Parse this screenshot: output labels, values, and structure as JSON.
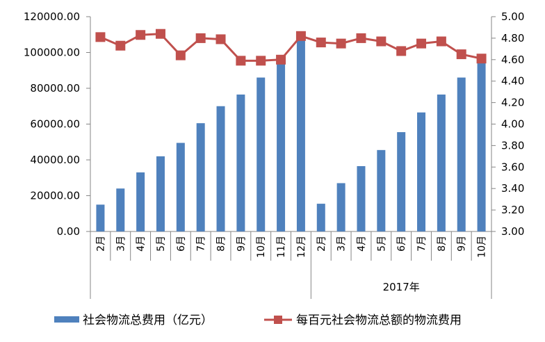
{
  "chart_data": {
    "type": "bar+line",
    "categories": [
      "2月",
      "3月",
      "4月",
      "5月",
      "6月",
      "7月",
      "8月",
      "9月",
      "10月",
      "11月",
      "12月",
      "2月",
      "3月",
      "4月",
      "5月",
      "6月",
      "7月",
      "8月",
      "9月",
      "10月"
    ],
    "group_labels": [
      {
        "label": "",
        "from": 0,
        "to": 10
      },
      {
        "label": "2017年",
        "from": 11,
        "to": 19
      }
    ],
    "series": [
      {
        "name": "社会物流总费用（亿元）",
        "type": "bar",
        "axis": "left",
        "color": "#4F81BD",
        "values": [
          15000,
          24000,
          33000,
          42000,
          49500,
          60500,
          70000,
          76500,
          86000,
          97000,
          107000,
          15500,
          27000,
          36500,
          45500,
          55500,
          66500,
          76500,
          86000,
          97000
        ]
      },
      {
        "name": "每百元社会物流总额的物流费用",
        "type": "line",
        "axis": "right",
        "color": "#C0504D",
        "marker": "square",
        "values": [
          4.81,
          4.73,
          4.83,
          4.84,
          4.64,
          4.8,
          4.79,
          4.59,
          4.59,
          4.6,
          4.82,
          4.76,
          4.75,
          4.8,
          4.77,
          4.68,
          4.75,
          4.77,
          4.65,
          4.61
        ]
      }
    ],
    "y_left": {
      "min": 0,
      "max": 120000,
      "ticks": [
        "0.00",
        "20000.00",
        "40000.00",
        "60000.00",
        "80000.00",
        "100000.00",
        "120000.00"
      ]
    },
    "y_right": {
      "min": 3.0,
      "max": 5.0,
      "ticks": [
        "3.00",
        "3.20",
        "3.40",
        "3.60",
        "3.80",
        "4.00",
        "4.20",
        "4.40",
        "4.60",
        "4.80",
        "5.00"
      ]
    },
    "grid": false,
    "legend_position": "bottom"
  }
}
